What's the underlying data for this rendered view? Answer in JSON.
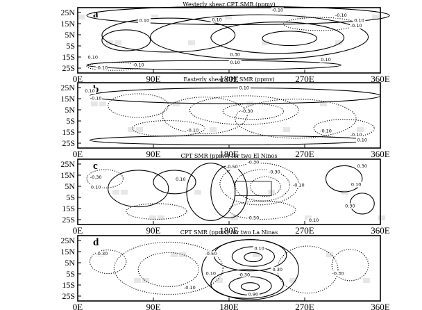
{
  "panels": [
    {
      "letter": "a",
      "title": "Westerly shear CPT SMR (ppmv)",
      "y_ticks": [
        "25N",
        "15N",
        "5N",
        "5S",
        "15S",
        "25S"
      ],
      "x_ticks": [
        "0E",
        "90E",
        "180E",
        "270E",
        "360E"
      ],
      "contour_labels": [
        "-0.10",
        "0.10",
        "0.10",
        "-0.10",
        "-0.10",
        "0.10",
        "0.30",
        "0.10",
        "0.10",
        "-0.10",
        "-0.10",
        "0.10"
      ]
    },
    {
      "letter": "b",
      "title": "Easterly shear CPT SMR (ppmv)",
      "y_ticks": [
        "25N",
        "15N",
        "5N",
        "5S",
        "15S",
        "25S"
      ],
      "x_ticks": [
        "0E",
        "90E",
        "180E",
        "270E",
        "360E"
      ],
      "contour_labels": [
        "0.10",
        "-0.10",
        "0.10",
        "-0.30",
        "-0.10",
        "-0.10",
        "-0.10",
        "0.10"
      ]
    },
    {
      "letter": "c",
      "title": "CPT SMR (ppmv) for two El Ninos",
      "y_ticks": [
        "25N",
        "15N",
        "5N",
        "5S",
        "15S",
        "25S"
      ],
      "x_ticks": [
        "0E",
        "90E",
        "180E",
        "270E",
        "360E"
      ],
      "contour_labels": [
        "-0.30",
        "-0.30",
        "0.10",
        "0.10",
        "0.30",
        "-0.30",
        "-0.50",
        "-0.10",
        "-0.50",
        "0.10",
        "0.10",
        "0.30"
      ]
    },
    {
      "letter": "d",
      "title": "CPT SMR (ppmv) for two La Ninas",
      "y_ticks": [
        "25N",
        "15N",
        "5N",
        "5S",
        "15S",
        "25S"
      ],
      "x_ticks": [
        "0E",
        "90E",
        "180E",
        "270E",
        "360E"
      ],
      "contour_labels": [
        "-0.30",
        "-0.50",
        "0.10",
        "0.10",
        "-0.30",
        "0.30",
        "-0.10",
        "0.90",
        "-0.30"
      ]
    }
  ]
}
